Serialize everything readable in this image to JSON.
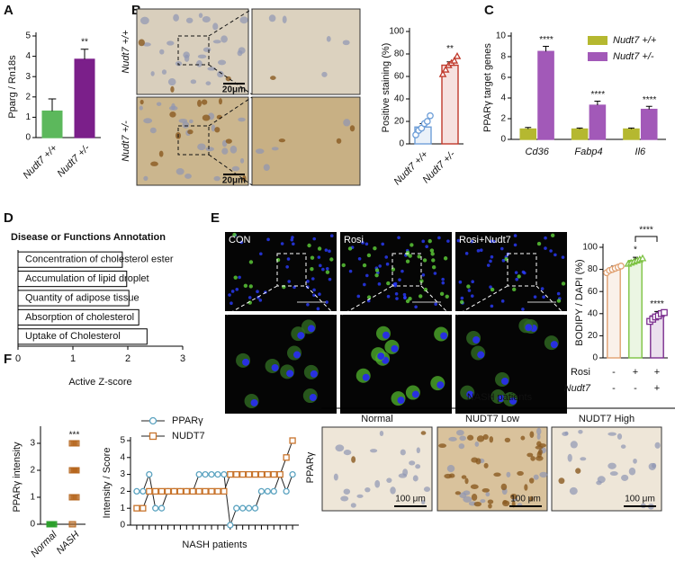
{
  "panel_labels": [
    "A",
    "B",
    "C",
    "D",
    "E",
    "F"
  ],
  "images": {
    "B": {
      "row_labels": [
        "Nudt7 +/+",
        "Nudt7 +/-"
      ],
      "scale_bars": [
        "20μm",
        "20μm"
      ]
    },
    "E": {
      "columns": [
        "CON",
        "Rosi",
        "Rosi+Nudt7"
      ]
    },
    "F": {
      "title": "NASH patients",
      "columns": [
        "Normal",
        "NUDT7 Low",
        "NUDT7 High"
      ],
      "row_label": "PPARγ",
      "scale_bars": [
        "100 μm",
        "100 μm",
        "100 μm"
      ]
    }
  },
  "chart_data": [
    {
      "type": "bar",
      "ylabel": "Pparg / Rn18s",
      "categories": [
        "Nudt7 +/+",
        "Nudt7 +/-"
      ],
      "values": [
        1.3,
        3.85
      ],
      "errors": [
        0.6,
        0.5
      ],
      "colors": [
        "#5cb85c",
        "#7b1f8a"
      ],
      "bar_fill": true,
      "ylim": [
        0,
        5
      ],
      "yticks": [
        0,
        1,
        2,
        3,
        4,
        5
      ],
      "annotations": [
        null,
        "**"
      ]
    },
    {
      "type": "bar",
      "ylabel": "Positive staining (%)",
      "categories": [
        "Nudt7 +/+",
        "Nudt7 +/-"
      ],
      "values": [
        15,
        70
      ],
      "errors": [
        3,
        3
      ],
      "colors": [
        "#6f9fd8",
        "#c0392b"
      ],
      "bar_fill": false,
      "points": [
        [
          8,
          12,
          14,
          18,
          20,
          25
        ],
        [
          62,
          66,
          70,
          72,
          74,
          78
        ]
      ],
      "markers": [
        "circle",
        "triangle"
      ],
      "ylim": [
        0,
        100
      ],
      "yticks": [
        0,
        20,
        40,
        60,
        80,
        100
      ],
      "annotations": [
        null,
        "**"
      ]
    },
    {
      "type": "bar",
      "ylabel": "PPARγ target genes",
      "categories": [
        "Cd36",
        "Fabp4",
        "Il6"
      ],
      "series": [
        {
          "name": "Nudt7 +/+",
          "color": "#b5b830",
          "values": [
            1,
            1,
            1
          ],
          "errors": [
            0.15,
            0.1,
            0.1
          ]
        },
        {
          "name": "Nudt7 +/-",
          "color": "#a259b8",
          "values": [
            8.5,
            3.3,
            2.9
          ],
          "errors": [
            0.5,
            0.4,
            0.3
          ]
        }
      ],
      "bar_fill": true,
      "ylim": [
        0,
        10
      ],
      "yticks": [
        0,
        2,
        4,
        6,
        8,
        10
      ],
      "annotations": [
        "****",
        "****",
        "****"
      ]
    },
    {
      "type": "barh",
      "title": "Disease or Functions Annotation",
      "xlabel": "Active Z-score",
      "categories": [
        "Concentration of cholesterol ester",
        "Accumulation of lipid droplet",
        "Quantity of adipose tissue",
        "Absorption of cholesterol",
        "Uptake of Cholesterol"
      ],
      "values": [
        1.9,
        1.98,
        2.02,
        2.2,
        2.35
      ],
      "color": "#ffffff",
      "xlim": [
        0,
        3
      ],
      "xticks": [
        0,
        1,
        2,
        3
      ]
    },
    {
      "type": "bar",
      "ylabel": "BODIPY / DAPI (%)",
      "values": [
        80,
        88,
        38
      ],
      "errors": [
        3,
        3,
        4
      ],
      "colors": [
        "#e0a070",
        "#7cc242",
        "#7b2d8e"
      ],
      "bar_fill": false,
      "points": [
        [
          77,
          79,
          80,
          81,
          82,
          83
        ],
        [
          85,
          86,
          87,
          88,
          89,
          90
        ],
        [
          33,
          35,
          37,
          38,
          40,
          41
        ]
      ],
      "markers": [
        "circle",
        "triangle",
        "square"
      ],
      "ylim": [
        0,
        100
      ],
      "yticks": [
        0,
        20,
        40,
        60,
        80,
        100
      ],
      "annotations": [
        null,
        "*",
        "****"
      ],
      "bracket_label": "****",
      "conditions": [
        {
          "name": "Rosi",
          "values": [
            "-",
            "+",
            "+"
          ]
        },
        {
          "name": "Nudt7",
          "values": [
            "-",
            "-",
            "+"
          ]
        }
      ]
    },
    {
      "type": "strip",
      "ylabel": "PPARγ intensity",
      "categories": [
        "Normal",
        "NASH"
      ],
      "points": [
        [
          0,
          0,
          0,
          0,
          0,
          0,
          0,
          0
        ],
        [
          0,
          1,
          1,
          1,
          2,
          2,
          2,
          2,
          2,
          3,
          3,
          3
        ]
      ],
      "colors": [
        "#2ca02c",
        "#b5651d"
      ],
      "ylim": [
        0,
        3.5
      ],
      "yticks": [
        0,
        1,
        2,
        3
      ],
      "annotations": [
        null,
        "***"
      ]
    },
    {
      "type": "line",
      "ylabel": "Intensity / Score",
      "xlabel": "NASH patients",
      "x": [
        1,
        2,
        3,
        4,
        5,
        6,
        7,
        8,
        9,
        10,
        11,
        12,
        13,
        14,
        15,
        16,
        17,
        18,
        19,
        20,
        21,
        22,
        23,
        24,
        25,
        26
      ],
      "xlim": [
        0,
        27
      ],
      "series": [
        {
          "name": "PPARγ",
          "color": "#5ba3c0",
          "marker": "circle",
          "values": [
            2,
            2,
            3,
            1,
            1,
            2,
            2,
            2,
            2,
            2,
            3,
            3,
            3,
            3,
            3,
            0,
            1,
            1,
            1,
            1,
            2,
            2,
            2,
            3,
            2,
            3
          ]
        },
        {
          "name": "NUDT7",
          "color": "#c8742c",
          "marker": "square",
          "values": [
            1,
            1,
            2,
            2,
            2,
            2,
            2,
            2,
            2,
            2,
            2,
            2,
            2,
            2,
            2,
            3,
            3,
            3,
            3,
            3,
            3,
            3,
            3,
            3,
            4,
            5
          ]
        }
      ],
      "ylim": [
        0,
        5
      ],
      "yticks": [
        0,
        1,
        2,
        3,
        4,
        5
      ]
    }
  ]
}
